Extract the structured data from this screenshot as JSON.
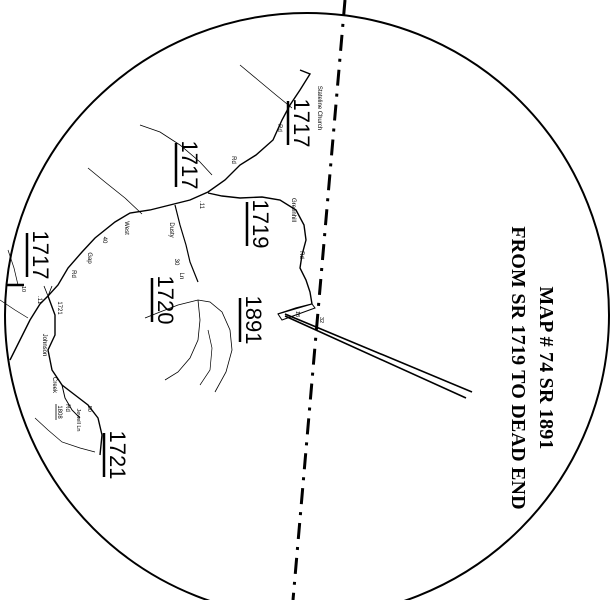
{
  "map": {
    "title_line1": "MAP # 74    SR 1891",
    "title_line2": "FROM SR 1719 TO DEAD END",
    "routes": {
      "r1717_top": "1717",
      "r1717_mid": "1717",
      "r1717_left": "1717",
      "r1719": "1719",
      "r1720": "1720",
      "r1891": "1891",
      "r1721": "1721",
      "r1721_small": "1721",
      "r1808": "1808"
    },
    "roads": {
      "stateline_church": "Stateline Church",
      "rd_top": "Rd",
      "rd_main": "Rd",
      "greenhill": "Greenhill",
      "rd_greenhill": "Rd",
      "dusty": "Dusty",
      "dusty_ln": "Ln",
      "west_40": "West",
      "forty": "40",
      "gap": "Gap",
      "rd_west": "Rd",
      "johnson": "Johnson",
      "creek": "Creek",
      "rd_creek": "Rd",
      "jewell_ln": "Jewell Ln",
      "scale_mark_1": ".11",
      "scale_mark_2": ".11",
      "num_30": "30",
      "num_10": "10",
      "num_50": ".50",
      "num_18": "18",
      "num_32": "32"
    }
  }
}
